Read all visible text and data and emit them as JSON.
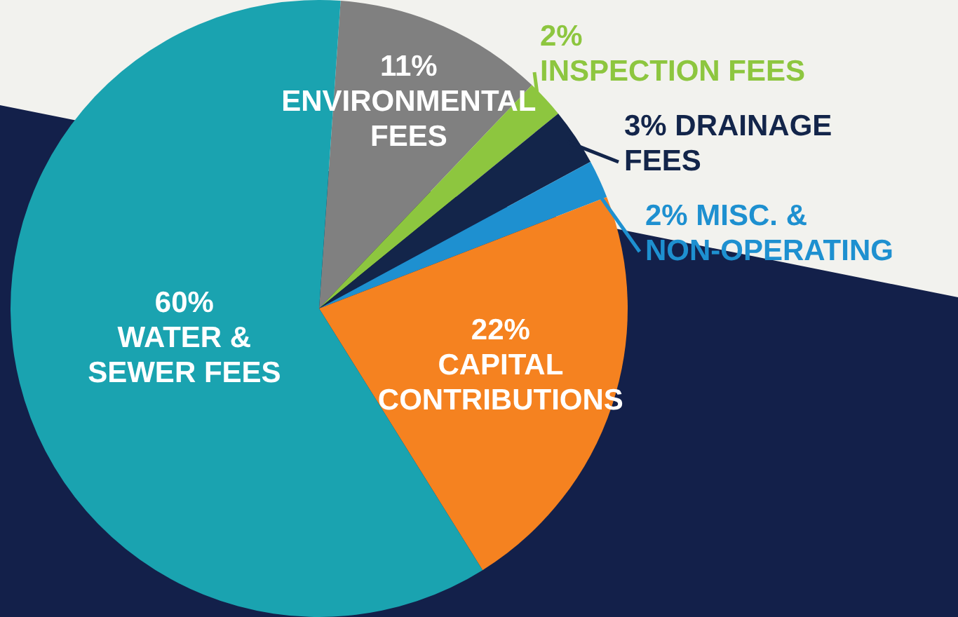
{
  "chart_data": {
    "type": "pie",
    "categories": [
      "ENVIRONMENTAL FEES",
      "INSPECTION FEES",
      "DRAINAGE FEES",
      "MISC. & NON-OPERATING",
      "CAPITAL CONTRIBUTIONS",
      "WATER & SEWER FEES"
    ],
    "values": [
      11,
      2,
      3,
      2,
      22,
      60
    ],
    "colors": [
      "#808080",
      "#8dc63f",
      "#13254a",
      "#1e90d0",
      "#f58220",
      "#1aa3b0"
    ],
    "value_labels": [
      "11%",
      "2%",
      "3%",
      "2%",
      "22%",
      "60%"
    ],
    "legend": false
  }
}
